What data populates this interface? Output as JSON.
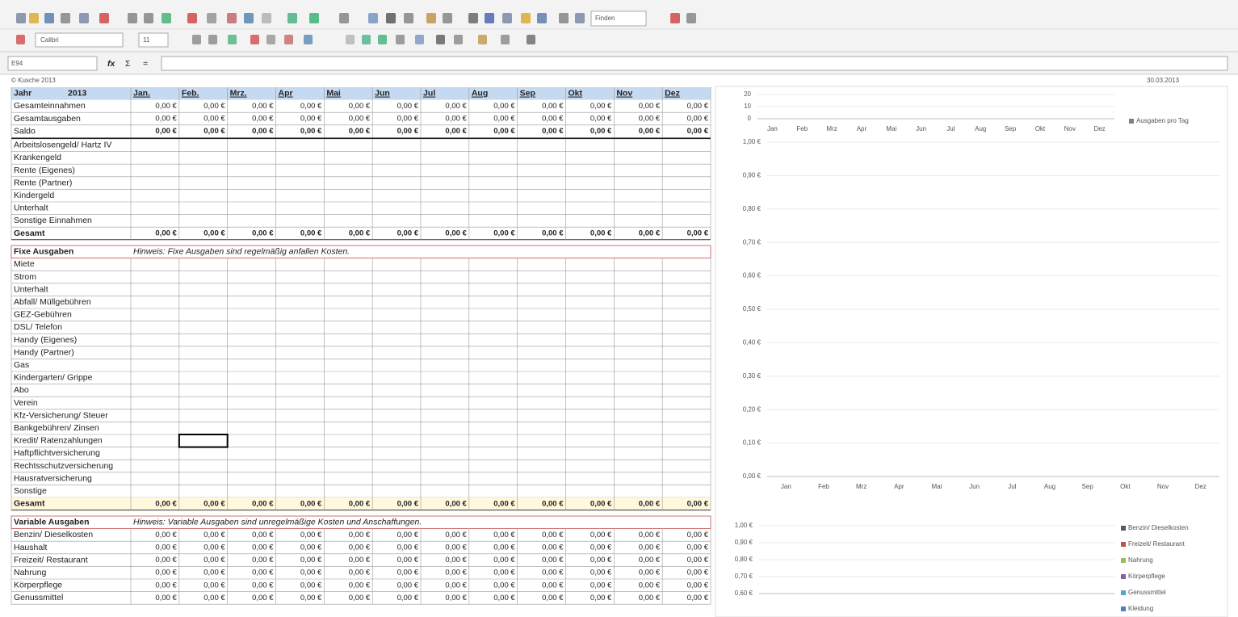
{
  "toolbar": {
    "font": "Calibri",
    "size": "11",
    "search": "Finden"
  },
  "formula_bar": {
    "cell": "E94",
    "fx": "fx",
    "sum": "Σ",
    "eq": "="
  },
  "header": {
    "copyright": "© Kusche 2013",
    "date": "30.03.2013"
  },
  "table": {
    "year_label": "Jahr",
    "year": "2013",
    "months": [
      "Jan.",
      "Feb.",
      "Mrz.",
      "Apr",
      "Mai",
      "Jun",
      "Jul",
      "Aug",
      "Sep",
      "Okt",
      "Nov",
      "Dez"
    ],
    "sections": [
      {
        "rows": [
          {
            "label": "Gesamteinnahmen",
            "values": [
              "0,00 €",
              "0,00 €",
              "0,00 €",
              "0,00 €",
              "0,00 €",
              "0,00 €",
              "0,00 €",
              "0,00 €",
              "0,00 €",
              "0,00 €",
              "0,00 €",
              "0,00 €"
            ]
          },
          {
            "label": "Gesamtausgaben",
            "values": [
              "0,00 €",
              "0,00 €",
              "0,00 €",
              "0,00 €",
              "0,00 €",
              "0,00 €",
              "0,00 €",
              "0,00 €",
              "0,00 €",
              "0,00 €",
              "0,00 €",
              "0,00 €"
            ]
          },
          {
            "label": "Saldo",
            "values": [
              "0,00 €",
              "0,00 €",
              "0,00 €",
              "0,00 €",
              "0,00 €",
              "0,00 €",
              "0,00 €",
              "0,00 €",
              "0,00 €",
              "0,00 €",
              "0,00 €",
              "0,00 €"
            ]
          }
        ]
      },
      {
        "rows": [
          {
            "label": "Arbeitslosengeld/ Hartz IV"
          },
          {
            "label": "Krankengeld"
          },
          {
            "label": "Rente (Eigenes)"
          },
          {
            "label": "Rente (Partner)"
          },
          {
            "label": "Kindergeld"
          },
          {
            "label": "Unterhalt"
          },
          {
            "label": "Sonstige Einnahmen"
          }
        ],
        "total": {
          "label": "Gesamt",
          "values": [
            "0,00 €",
            "0,00 €",
            "0,00 €",
            "0,00 €",
            "0,00 €",
            "0,00 €",
            "0,00 €",
            "0,00 €",
            "0,00 €",
            "0,00 €",
            "0,00 €",
            "0,00 €"
          ]
        }
      },
      {
        "title": "Fixe Ausgaben",
        "hint": "Hinweis: Fixe Ausgaben sind regelmäßig anfallen Kosten.",
        "rows": [
          {
            "label": "Miete"
          },
          {
            "label": "Strom"
          },
          {
            "label": "Unterhalt"
          },
          {
            "label": "Abfall/ Müllgebühren"
          },
          {
            "label": "GEZ-Gebühren"
          },
          {
            "label": "DSL/ Telefon"
          },
          {
            "label": "Handy (Eigenes)"
          },
          {
            "label": "Handy (Partner)"
          },
          {
            "label": "Gas"
          },
          {
            "label": "Kindergarten/ Grippe"
          },
          {
            "label": "Abo"
          },
          {
            "label": "Verein"
          },
          {
            "label": "Kfz-Versicherung/ Steuer"
          },
          {
            "label": "Bankgebühren/ Zinsen"
          },
          {
            "label": "Kredit/ Ratenzahlungen"
          },
          {
            "label": "Haftpflichtversicherung"
          },
          {
            "label": "Rechtsschutzversicherung"
          },
          {
            "label": "Hausratversicherung"
          },
          {
            "label": "Sonstige"
          }
        ],
        "total": {
          "label": "Gesamt",
          "values": [
            "0,00 €",
            "0,00 €",
            "0,00 €",
            "0,00 €",
            "0,00 €",
            "0,00 €",
            "0,00 €",
            "0,00 €",
            "0,00 €",
            "0,00 €",
            "0,00 €",
            "0,00 €"
          ]
        }
      },
      {
        "title": "Variable Ausgaben",
        "hint": "Hinweis: Variable Ausgaben sind unregelmäßige Kosten und Anschaffungen.",
        "rows": [
          {
            "label": "Benzin/ Dieselkosten",
            "values": [
              "0,00 €",
              "0,00 €",
              "0,00 €",
              "0,00 €",
              "0,00 €",
              "0,00 €",
              "0,00 €",
              "0,00 €",
              "0,00 €",
              "0,00 €",
              "0,00 €",
              "0,00 €"
            ]
          },
          {
            "label": "Haushalt",
            "values": [
              "0,00 €",
              "0,00 €",
              "0,00 €",
              "0,00 €",
              "0,00 €",
              "0,00 €",
              "0,00 €",
              "0,00 €",
              "0,00 €",
              "0,00 €",
              "0,00 €",
              "0,00 €"
            ]
          },
          {
            "label": "Freizeit/ Restaurant",
            "values": [
              "0,00 €",
              "0,00 €",
              "0,00 €",
              "0,00 €",
              "0,00 €",
              "0,00 €",
              "0,00 €",
              "0,00 €",
              "0,00 €",
              "0,00 €",
              "0,00 €",
              "0,00 €"
            ]
          },
          {
            "label": "Nahrung",
            "values": [
              "0,00 €",
              "0,00 €",
              "0,00 €",
              "0,00 €",
              "0,00 €",
              "0,00 €",
              "0,00 €",
              "0,00 €",
              "0,00 €",
              "0,00 €",
              "0,00 €",
              "0,00 €"
            ]
          },
          {
            "label": "Körperpflege",
            "values": [
              "0,00 €",
              "0,00 €",
              "0,00 €",
              "0,00 €",
              "0,00 €",
              "0,00 €",
              "0,00 €",
              "0,00 €",
              "0,00 €",
              "0,00 €",
              "0,00 €",
              "0,00 €"
            ]
          },
          {
            "label": "Genussmittel",
            "values": [
              "0,00 €",
              "0,00 €",
              "0,00 €",
              "0,00 €",
              "0,00 €",
              "0,00 €",
              "0,00 €",
              "0,00 €",
              "0,00 €",
              "0,00 €",
              "0,00 €",
              "0,00 €"
            ]
          }
        ]
      }
    ]
  },
  "charts": [
    {
      "type": "line",
      "categories": [
        "Jan",
        "Feb",
        "Mrz",
        "Apr",
        "Mai",
        "Jun",
        "Jul",
        "Aug",
        "Sep",
        "Okt",
        "Nov",
        "Dez"
      ],
      "ylim": [
        0,
        20
      ],
      "yticks": [
        0,
        10,
        20
      ],
      "legend": [
        {
          "name": "Ausgaben pro Tag",
          "color": "#7f7f7f"
        }
      ]
    },
    {
      "type": "line",
      "categories": [
        "Jan",
        "Feb",
        "Mrz",
        "Apr",
        "Mai",
        "Jun",
        "Jul",
        "Aug",
        "Sep",
        "Okt",
        "Nov",
        "Dez"
      ],
      "ylim": [
        0,
        1
      ],
      "yticks": [
        {
          "value": 0,
          "label": "0,00 €"
        },
        {
          "value": 0.1,
          "label": "0,10 €"
        },
        {
          "value": 0.2,
          "label": "0,20 €"
        },
        {
          "value": 0.3,
          "label": "0,30 €"
        },
        {
          "value": 0.4,
          "label": "0,40 €"
        },
        {
          "value": 0.5,
          "label": "0,50 €"
        },
        {
          "value": 0.6,
          "label": "0,60 €"
        },
        {
          "value": 0.7,
          "label": "0,70 €"
        },
        {
          "value": 0.8,
          "label": "0,80 €"
        },
        {
          "value": 0.9,
          "label": "0,90 €"
        },
        {
          "value": 1,
          "label": "1,00 €"
        }
      ]
    },
    {
      "type": "line",
      "ylim": [
        0.6,
        1
      ],
      "yticks": [
        {
          "value": 0.6,
          "label": "0,60 €"
        },
        {
          "value": 0.7,
          "label": "0,70 €"
        },
        {
          "value": 0.8,
          "label": "0,80 €"
        },
        {
          "value": 0.9,
          "label": "0,90 €"
        },
        {
          "value": 1,
          "label": "1,00 €"
        }
      ],
      "legend": [
        {
          "name": "Benzin/ Dieselkosten",
          "color": "#595959"
        },
        {
          "name": "Freizeit/ Restaurant",
          "color": "#c0504d"
        },
        {
          "name": "Nahrung",
          "color": "#9bbb59"
        },
        {
          "name": "Körperpflege",
          "color": "#8064a2"
        },
        {
          "name": "Genussmittel",
          "color": "#4bacc6"
        },
        {
          "name": "Kleidung",
          "color": "#4f81bd"
        }
      ]
    }
  ]
}
